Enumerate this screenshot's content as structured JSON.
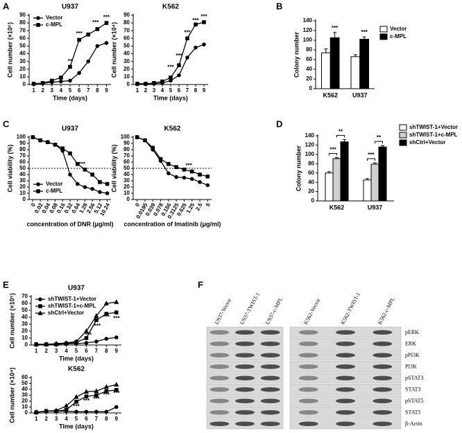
{
  "chart_data": [
    {
      "type": "line",
      "panel": "A",
      "title": "U937",
      "x": [
        1,
        2,
        3,
        4,
        5,
        6,
        7,
        8,
        9
      ],
      "xlim": [
        0.5,
        9.5
      ],
      "xticks": [
        1,
        2,
        3,
        4,
        5,
        6,
        7,
        8,
        9
      ],
      "ylim": [
        0,
        90
      ],
      "yticks": [
        0,
        10,
        20,
        30,
        40,
        50,
        60,
        70,
        80,
        90
      ],
      "xlabel": "Time (days)",
      "ylabel": "Cell number (×10⁵)",
      "legend": "upper left",
      "series": [
        {
          "name": "Vector",
          "color": "#000000",
          "marker": "circle",
          "values": [
            1,
            1.5,
            3,
            4,
            5,
            15,
            30,
            50,
            54
          ]
        },
        {
          "name": "c-MPL",
          "color": "#000000",
          "marker": "square",
          "values": [
            1,
            2,
            5,
            9,
            23,
            58,
            65,
            72,
            80
          ]
        }
      ],
      "annotations": [
        {
          "text": "**",
          "x": 5,
          "y": 30
        },
        {
          "text": "***",
          "x": 6,
          "y": 66
        },
        {
          "text": "***",
          "x": 7.8,
          "y": 80
        },
        {
          "text": "***",
          "x": 9,
          "y": 87
        }
      ]
    },
    {
      "type": "line",
      "title": "K562",
      "x": [
        1,
        2,
        3,
        4,
        5,
        6,
        7,
        8,
        9
      ],
      "xlim": [
        0.5,
        9.5
      ],
      "xticks": [
        1,
        2,
        3,
        4,
        5,
        6,
        7,
        8,
        9
      ],
      "ylim": [
        0,
        90
      ],
      "yticks": [
        0,
        10,
        20,
        30,
        40,
        50,
        60,
        70,
        80,
        90
      ],
      "xlabel": "Time (days)",
      "ylabel": "Cell number (×10⁴)",
      "series": [
        {
          "name": "Vector",
          "color": "#000000",
          "marker": "circle",
          "values": [
            1,
            1,
            1,
            2,
            5,
            12,
            35,
            48,
            52
          ]
        },
        {
          "name": "c-MPL",
          "color": "#000000",
          "marker": "square",
          "values": [
            1,
            1,
            2,
            4,
            9,
            25,
            60,
            78,
            81
          ]
        }
      ],
      "annotations": [
        {
          "text": "***",
          "x": 5,
          "y": 22
        },
        {
          "text": "***",
          "x": 6,
          "y": 37
        },
        {
          "text": "***",
          "x": 7,
          "y": 67
        },
        {
          "text": "***",
          "x": 8,
          "y": 83
        },
        {
          "text": "***",
          "x": 9,
          "y": 88
        }
      ]
    },
    {
      "type": "bar",
      "panel": "B",
      "categories": [
        "K562",
        "U937"
      ],
      "ylim": [
        0,
        140
      ],
      "yticks": [
        0,
        20,
        40,
        60,
        80,
        100,
        120,
        140
      ],
      "ylabel": "Colony number",
      "legend": "right",
      "series": [
        {
          "name": "Vector",
          "color": "#ffffff",
          "values": [
            74,
            66
          ],
          "errors": [
            8,
            4
          ]
        },
        {
          "name": "c-MPL",
          "color": "#000000",
          "values": [
            105,
            102
          ],
          "errors": [
            11,
            5
          ]
        }
      ],
      "annotations": [
        {
          "text": "***",
          "category": 0,
          "series": 1
        },
        {
          "text": "***",
          "category": 1,
          "series": 1
        }
      ]
    },
    {
      "type": "line",
      "panel": "C",
      "title": "U937",
      "categories": [
        "0",
        "0.02",
        "0.04",
        "0.08",
        "0.16",
        "0.32",
        "0.64",
        "1.28",
        "2.56",
        "5.12",
        "10.24"
      ],
      "ylim": [
        0,
        100
      ],
      "yticks": [
        0,
        10,
        20,
        30,
        40,
        50,
        60,
        70,
        80,
        90,
        100
      ],
      "xlabel": "concentration of DNR (μg/ml)",
      "ylabel": "Cell viability (%)",
      "legend": "lower left",
      "hline": 50,
      "series": [
        {
          "name": "Vector",
          "color": "#000000",
          "marker": "circle",
          "values": [
            100,
            95,
            92,
            88,
            78,
            40,
            25,
            20,
            17,
            12,
            10
          ]
        },
        {
          "name": "c-MPL",
          "color": "#000000",
          "marker": "square",
          "values": [
            100,
            95,
            92,
            88,
            82,
            74,
            57,
            48,
            40,
            28,
            25
          ]
        }
      ],
      "annotations": [
        {
          "text": "***",
          "x": 6.6,
          "y": 56
        }
      ]
    },
    {
      "type": "line",
      "title": "K562",
      "categories": [
        "0",
        "0.0195",
        "0.039",
        "0.078",
        "0.156",
        "0.3125",
        "0.625",
        "1.25",
        "2.5",
        "5"
      ],
      "ylim": [
        0,
        100
      ],
      "yticks": [
        0,
        10,
        20,
        30,
        40,
        50,
        60,
        70,
        80,
        90,
        100
      ],
      "xlabel": "concentration of Imatinib (μg/ml)",
      "ylabel": "Cell viability (%)",
      "hline": 50,
      "series": [
        {
          "name": "Vector",
          "color": "#000000",
          "marker": "circle",
          "values": [
            100,
            95,
            80,
            62,
            42,
            36,
            35,
            33,
            28,
            23
          ]
        },
        {
          "name": "c-MPL",
          "color": "#000000",
          "marker": "square",
          "values": [
            100,
            95,
            83,
            65,
            57,
            52,
            48,
            45,
            40,
            37
          ]
        }
      ],
      "annotations": [
        {
          "text": "***",
          "x": 6.6,
          "y": 54
        }
      ]
    },
    {
      "type": "bar",
      "panel": "D",
      "categories": [
        "K562",
        "U937"
      ],
      "ylim": [
        0,
        140
      ],
      "yticks": [
        0,
        20,
        40,
        60,
        80,
        100,
        120,
        140
      ],
      "ylabel": "Colony number",
      "legend": "right",
      "series": [
        {
          "name": "shTWIST-1+Vector",
          "color": "#ffffff",
          "values": [
            60,
            45
          ],
          "errors": [
            3,
            3
          ]
        },
        {
          "name": "shTWIST-1+c-MPL",
          "color": "#d0d0d0",
          "values": [
            91,
            79
          ],
          "errors": [
            2,
            3
          ]
        },
        {
          "name": "shCtrl+Vector",
          "color": "#000000",
          "values": [
            127,
            116
          ],
          "errors": [
            5,
            3
          ]
        }
      ],
      "brackets": [
        {
          "text": "***",
          "category": 0,
          "from": 0,
          "to": 1
        },
        {
          "text": "**",
          "category": 0,
          "from": 1,
          "to": 2
        },
        {
          "text": "***",
          "category": 1,
          "from": 0,
          "to": 1
        },
        {
          "text": "**",
          "category": 1,
          "from": 1,
          "to": 2
        }
      ]
    },
    {
      "type": "line",
      "panel": "E",
      "title": "U937",
      "x": [
        1,
        2,
        3,
        4,
        5,
        6,
        7,
        8,
        9
      ],
      "xlim": [
        0.5,
        9.5
      ],
      "xticks": [
        1,
        2,
        3,
        4,
        5,
        6,
        7,
        8,
        9
      ],
      "ylim": [
        0,
        70
      ],
      "yticks": [
        0,
        10,
        20,
        30,
        40,
        50,
        60,
        70
      ],
      "xlabel": "Time (days)",
      "ylabel": "Cell number (×10⁵)",
      "legend": "upper left",
      "series": [
        {
          "name": "shTWIST-1+Vector",
          "color": "#000000",
          "marker": "circle",
          "values": [
            1,
            1,
            1,
            2,
            2,
            3,
            5,
            9,
            11
          ]
        },
        {
          "name": "shTWIST-1+c-MPL",
          "color": "#000000",
          "marker": "square",
          "values": [
            1,
            1,
            1,
            2,
            4,
            10,
            36,
            45,
            47
          ]
        },
        {
          "name": "shCtrl+Vector",
          "color": "#000000",
          "marker": "triangle",
          "values": [
            1,
            1,
            2,
            3,
            5,
            20,
            42,
            60,
            62
          ]
        }
      ],
      "annotations": [
        {
          "text": "***",
          "x": 6.2,
          "y": 14
        },
        {
          "text": "***",
          "x": 7.1,
          "y": 27
        },
        {
          "text": "***",
          "x": 8,
          "y": 40
        },
        {
          "text": "***",
          "x": 9,
          "y": 38
        }
      ]
    },
    {
      "type": "line",
      "title": "K562",
      "x": [
        1,
        2,
        3,
        4,
        5,
        6,
        7,
        8,
        9
      ],
      "xlim": [
        0.5,
        9.5
      ],
      "xticks": [
        1,
        2,
        3,
        4,
        5,
        6,
        7,
        8,
        9
      ],
      "ylim": [
        0,
        60
      ],
      "yticks": [
        0,
        10,
        20,
        30,
        40,
        50,
        60
      ],
      "xlabel": "Time (days)",
      "ylabel": "Cell number (×10⁴)",
      "series": [
        {
          "name": "shTWIST-1+Vector",
          "color": "#000000",
          "marker": "circle",
          "values": [
            1,
            3,
            3,
            3,
            2,
            2,
            2,
            2,
            10
          ]
        },
        {
          "name": "shTWIST-1+c-MPL",
          "color": "#000000",
          "marker": "square",
          "values": [
            1,
            3,
            3,
            5,
            19,
            28,
            30,
            37,
            39
          ]
        },
        {
          "name": "shCtrl+Vector",
          "color": "#000000",
          "marker": "triangle",
          "values": [
            1,
            3,
            4,
            12,
            27,
            36,
            37,
            44,
            48
          ]
        }
      ],
      "annotations": [
        {
          "text": "***",
          "x": 5,
          "y": 11
        },
        {
          "text": "***",
          "x": 6,
          "y": 20
        },
        {
          "text": "***",
          "x": 7,
          "y": 23
        },
        {
          "text": "***",
          "x": 8,
          "y": 30
        },
        {
          "text": "***",
          "x": 9,
          "y": 33
        }
      ]
    }
  ],
  "blot": {
    "panel": "F",
    "lanes": [
      "U937-Vector",
      "U937-TWIST-1",
      "U937-c-MPL",
      "K562-Vector",
      "K562-TWIST-1",
      "K562-c-MPL"
    ],
    "proteins": [
      "pERK",
      "ERK",
      "pPI3K",
      "PI3K",
      "pSTAT3",
      "STAT3",
      "pSTAT5",
      "STAT5",
      "β-Actin"
    ]
  }
}
